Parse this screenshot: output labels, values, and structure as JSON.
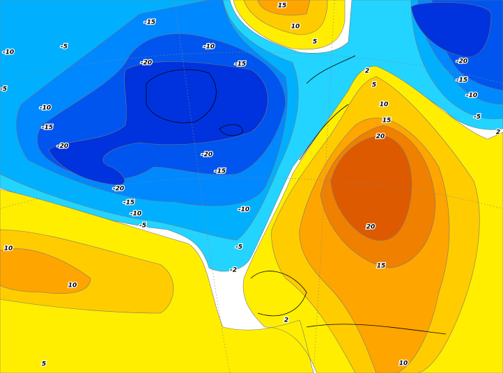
{
  "contour_labels": [
    "-15",
    "-10",
    "-5",
    "-5",
    "-20",
    "-10",
    "-15",
    "-10",
    "-15",
    "-20",
    "-20",
    "-15",
    "-20",
    "-15",
    "-10",
    "-5",
    "-10",
    "-5",
    "-2",
    "-20",
    "-15",
    "-10",
    "-5",
    "2",
    "2",
    "15",
    "10",
    "5",
    "5",
    "10",
    "15",
    "20",
    "20",
    "15",
    "10",
    "10",
    "5",
    "2",
    "10"
  ]
}
